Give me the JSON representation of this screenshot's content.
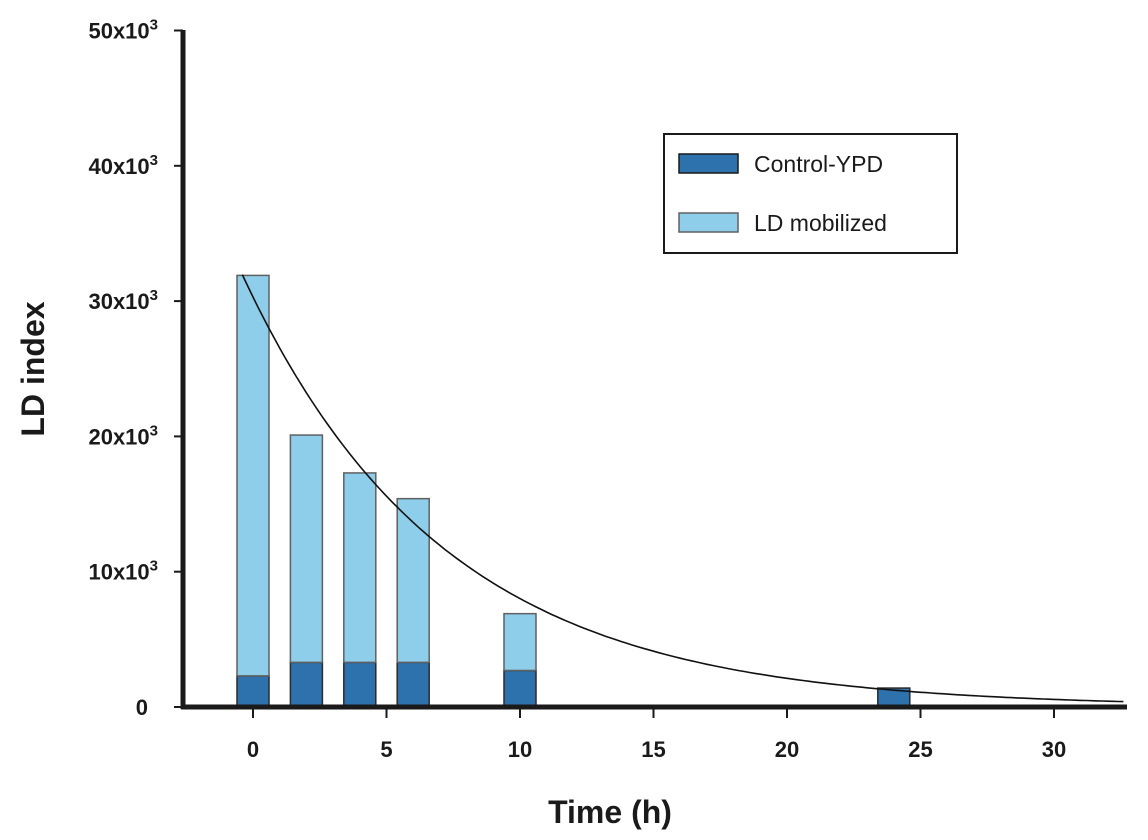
{
  "chart_data": {
    "type": "bar",
    "stacked": true,
    "title": "",
    "xlabel": "Time (h)",
    "ylabel": "LD index",
    "xlim": [
      -2.6,
      32.7
    ],
    "ylim": [
      0,
      50000
    ],
    "x_ticks": [
      0,
      5,
      10,
      15,
      20,
      25,
      30
    ],
    "x_tick_labels": [
      "0",
      "5",
      "10",
      "15",
      "20",
      "25",
      "30"
    ],
    "y_ticks": [
      0,
      10000,
      20000,
      30000,
      40000,
      50000
    ],
    "y_tick_labels": [
      {
        "base": "0",
        "exp": ""
      },
      {
        "base": "10x10",
        "exp": "3"
      },
      {
        "base": "20x10",
        "exp": "3"
      },
      {
        "base": "30x10",
        "exp": "3"
      },
      {
        "base": "40x10",
        "exp": "3"
      },
      {
        "base": "50x10",
        "exp": "3"
      }
    ],
    "grid": false,
    "x": [
      0,
      2,
      4,
      6,
      10,
      24
    ],
    "series": [
      {
        "name": "Control-YPD",
        "color": "#2E72AD",
        "values": [
          2300,
          3300,
          3300,
          3300,
          2700,
          1400
        ]
      },
      {
        "name": "LD mobilized",
        "color": "#8ECEEA",
        "values": [
          29600,
          16800,
          14000,
          12100,
          4200,
          0
        ]
      }
    ],
    "totals": [
      31900,
      20100,
      17300,
      15400,
      6900,
      1400
    ],
    "fit_curve": {
      "type": "exponential-decay",
      "a": 30300,
      "k": 0.133,
      "t_range": [
        -0.4,
        32.6
      ]
    },
    "legend": {
      "position": "top-right",
      "entries": [
        "Control-YPD",
        "LD mobilized"
      ]
    }
  }
}
